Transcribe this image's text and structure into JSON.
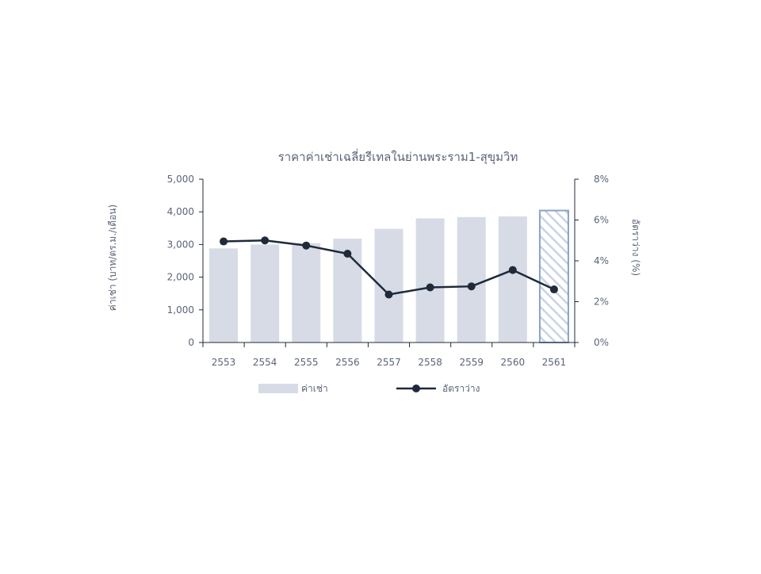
{
  "chart_data": {
    "type": "bar",
    "title": "ราคาค่าเช่าเฉลี่ยรีเทลในย่านพระราม1-สุขุมวิท",
    "categories": [
      "2553",
      "2554",
      "2555",
      "2556",
      "2557",
      "2558",
      "2559",
      "2560",
      "2561"
    ],
    "series": [
      {
        "name": "ค่าเช่า",
        "type": "bar",
        "axis": "left",
        "values": [
          2880,
          3000,
          3040,
          3180,
          3480,
          3800,
          3840,
          3860,
          4040
        ],
        "color": "#d6dbe6",
        "last_bar_style": "hatched",
        "hatch_color": "#8aa3c6"
      },
      {
        "name": "อัตราว่าง",
        "type": "line",
        "axis": "right",
        "values": [
          4.95,
          5.0,
          4.75,
          4.35,
          2.35,
          2.7,
          2.75,
          3.55,
          2.6
        ],
        "color": "#1f2a3a"
      }
    ],
    "ylabel": "ค่าเช่า (บาท/ตร.ม./เดือน)",
    "ylim": [
      0,
      5000
    ],
    "yticks": [
      "5,000",
      "4,000",
      "3,000",
      "2,000",
      "1,000",
      "0"
    ],
    "y2label": "อัตราว่าง (%)",
    "y2lim": [
      0,
      8
    ],
    "y2ticks": [
      "8%",
      "6%",
      "4%",
      "2%",
      "0%"
    ],
    "grid": false,
    "legend_placement": "bottom-center",
    "colors": {
      "axis": "#1f2a3a",
      "text": "#5a6478"
    }
  }
}
